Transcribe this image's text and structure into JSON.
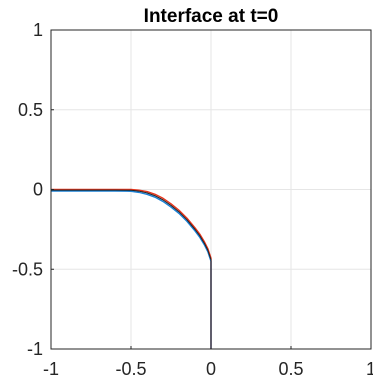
{
  "chart_data": {
    "type": "line",
    "title": "Interface at t=0",
    "xlabel": "",
    "ylabel": "",
    "xlim": [
      -1,
      1
    ],
    "ylim": [
      -1,
      1
    ],
    "grid": true,
    "legend": "none",
    "x_ticks": [
      -1,
      -0.5,
      0,
      0.5,
      1
    ],
    "x_tick_labels": [
      "-1",
      "-0.5",
      "0",
      "0.5",
      "1"
    ],
    "y_ticks": [
      -1,
      -0.5,
      0,
      0.5,
      1
    ],
    "y_tick_labels": [
      "-1",
      "-0.5",
      "0",
      "0.5",
      "1"
    ],
    "series": [
      {
        "color": "#e8331a",
        "x": [
          -1,
          -0.9,
          -0.8,
          -0.7,
          -0.6,
          -0.5,
          -0.45,
          -0.4,
          -0.35,
          -0.3,
          -0.25,
          -0.2,
          -0.15,
          -0.1,
          -0.07,
          -0.04,
          -0.02,
          -0.01,
          0,
          0,
          0,
          0,
          0
        ],
        "y": [
          0,
          0,
          0,
          0,
          0,
          0,
          -0.004,
          -0.013,
          -0.03,
          -0.055,
          -0.09,
          -0.13,
          -0.18,
          -0.24,
          -0.28,
          -0.33,
          -0.37,
          -0.4,
          -0.43,
          -0.55,
          -0.7,
          -0.85,
          -1
        ]
      },
      {
        "color": "#1a80d6",
        "x": [
          -1,
          -0.9,
          -0.8,
          -0.7,
          -0.6,
          -0.5,
          -0.45,
          -0.4,
          -0.35,
          -0.3,
          -0.25,
          -0.2,
          -0.15,
          -0.1,
          -0.07,
          -0.04,
          -0.02,
          -0.01,
          0,
          0,
          0,
          0,
          0
        ],
        "y": [
          -0.01,
          -0.01,
          -0.01,
          -0.01,
          -0.01,
          -0.011,
          -0.018,
          -0.03,
          -0.048,
          -0.075,
          -0.11,
          -0.15,
          -0.2,
          -0.26,
          -0.3,
          -0.35,
          -0.39,
          -0.42,
          -0.45,
          -0.57,
          -0.72,
          -0.86,
          -1
        ]
      },
      {
        "color": "#222222",
        "x": [
          -1,
          -0.9,
          -0.8,
          -0.7,
          -0.6,
          -0.5,
          -0.45,
          -0.4,
          -0.35,
          -0.3,
          -0.25,
          -0.2,
          -0.15,
          -0.1,
          -0.07,
          -0.04,
          -0.02,
          -0.01,
          0,
          0,
          0,
          0,
          0
        ],
        "y": [
          -0.004,
          -0.004,
          -0.004,
          -0.004,
          -0.004,
          -0.005,
          -0.01,
          -0.021,
          -0.039,
          -0.065,
          -0.1,
          -0.14,
          -0.19,
          -0.25,
          -0.29,
          -0.34,
          -0.38,
          -0.41,
          -0.44,
          -0.56,
          -0.71,
          -0.855,
          -1
        ]
      }
    ]
  }
}
